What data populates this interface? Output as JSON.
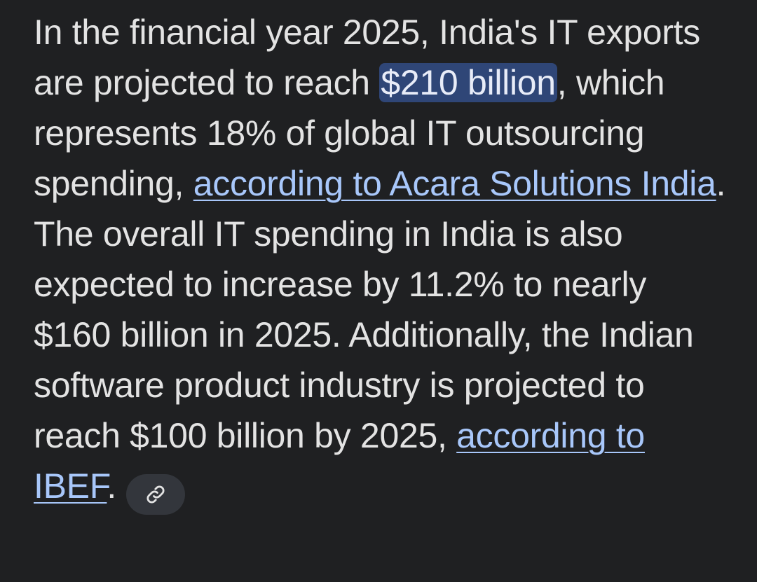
{
  "paragraph": {
    "seg1": "In the financial year 2025, India's IT exports are projected to reach ",
    "highlight": "$210 billion",
    "seg2": ", which represents 18% of global IT outsourcing spending, ",
    "link1": "according to Acara Solutions India",
    "seg3": ". The overall IT spending in India is also expected to increase by 11.2% to nearly $160 billion in 2025. Additionally, the Indian software product industry is projected to reach $100 billion by 2025, ",
    "link2": "according to IBEF",
    "seg4": "."
  },
  "chip": {
    "icon": "link-icon"
  },
  "colors": {
    "background": "#1f2022",
    "text": "#e3e3e3",
    "link": "#a8c7fa",
    "highlight": "#2f4677",
    "chip": "#33363c"
  }
}
